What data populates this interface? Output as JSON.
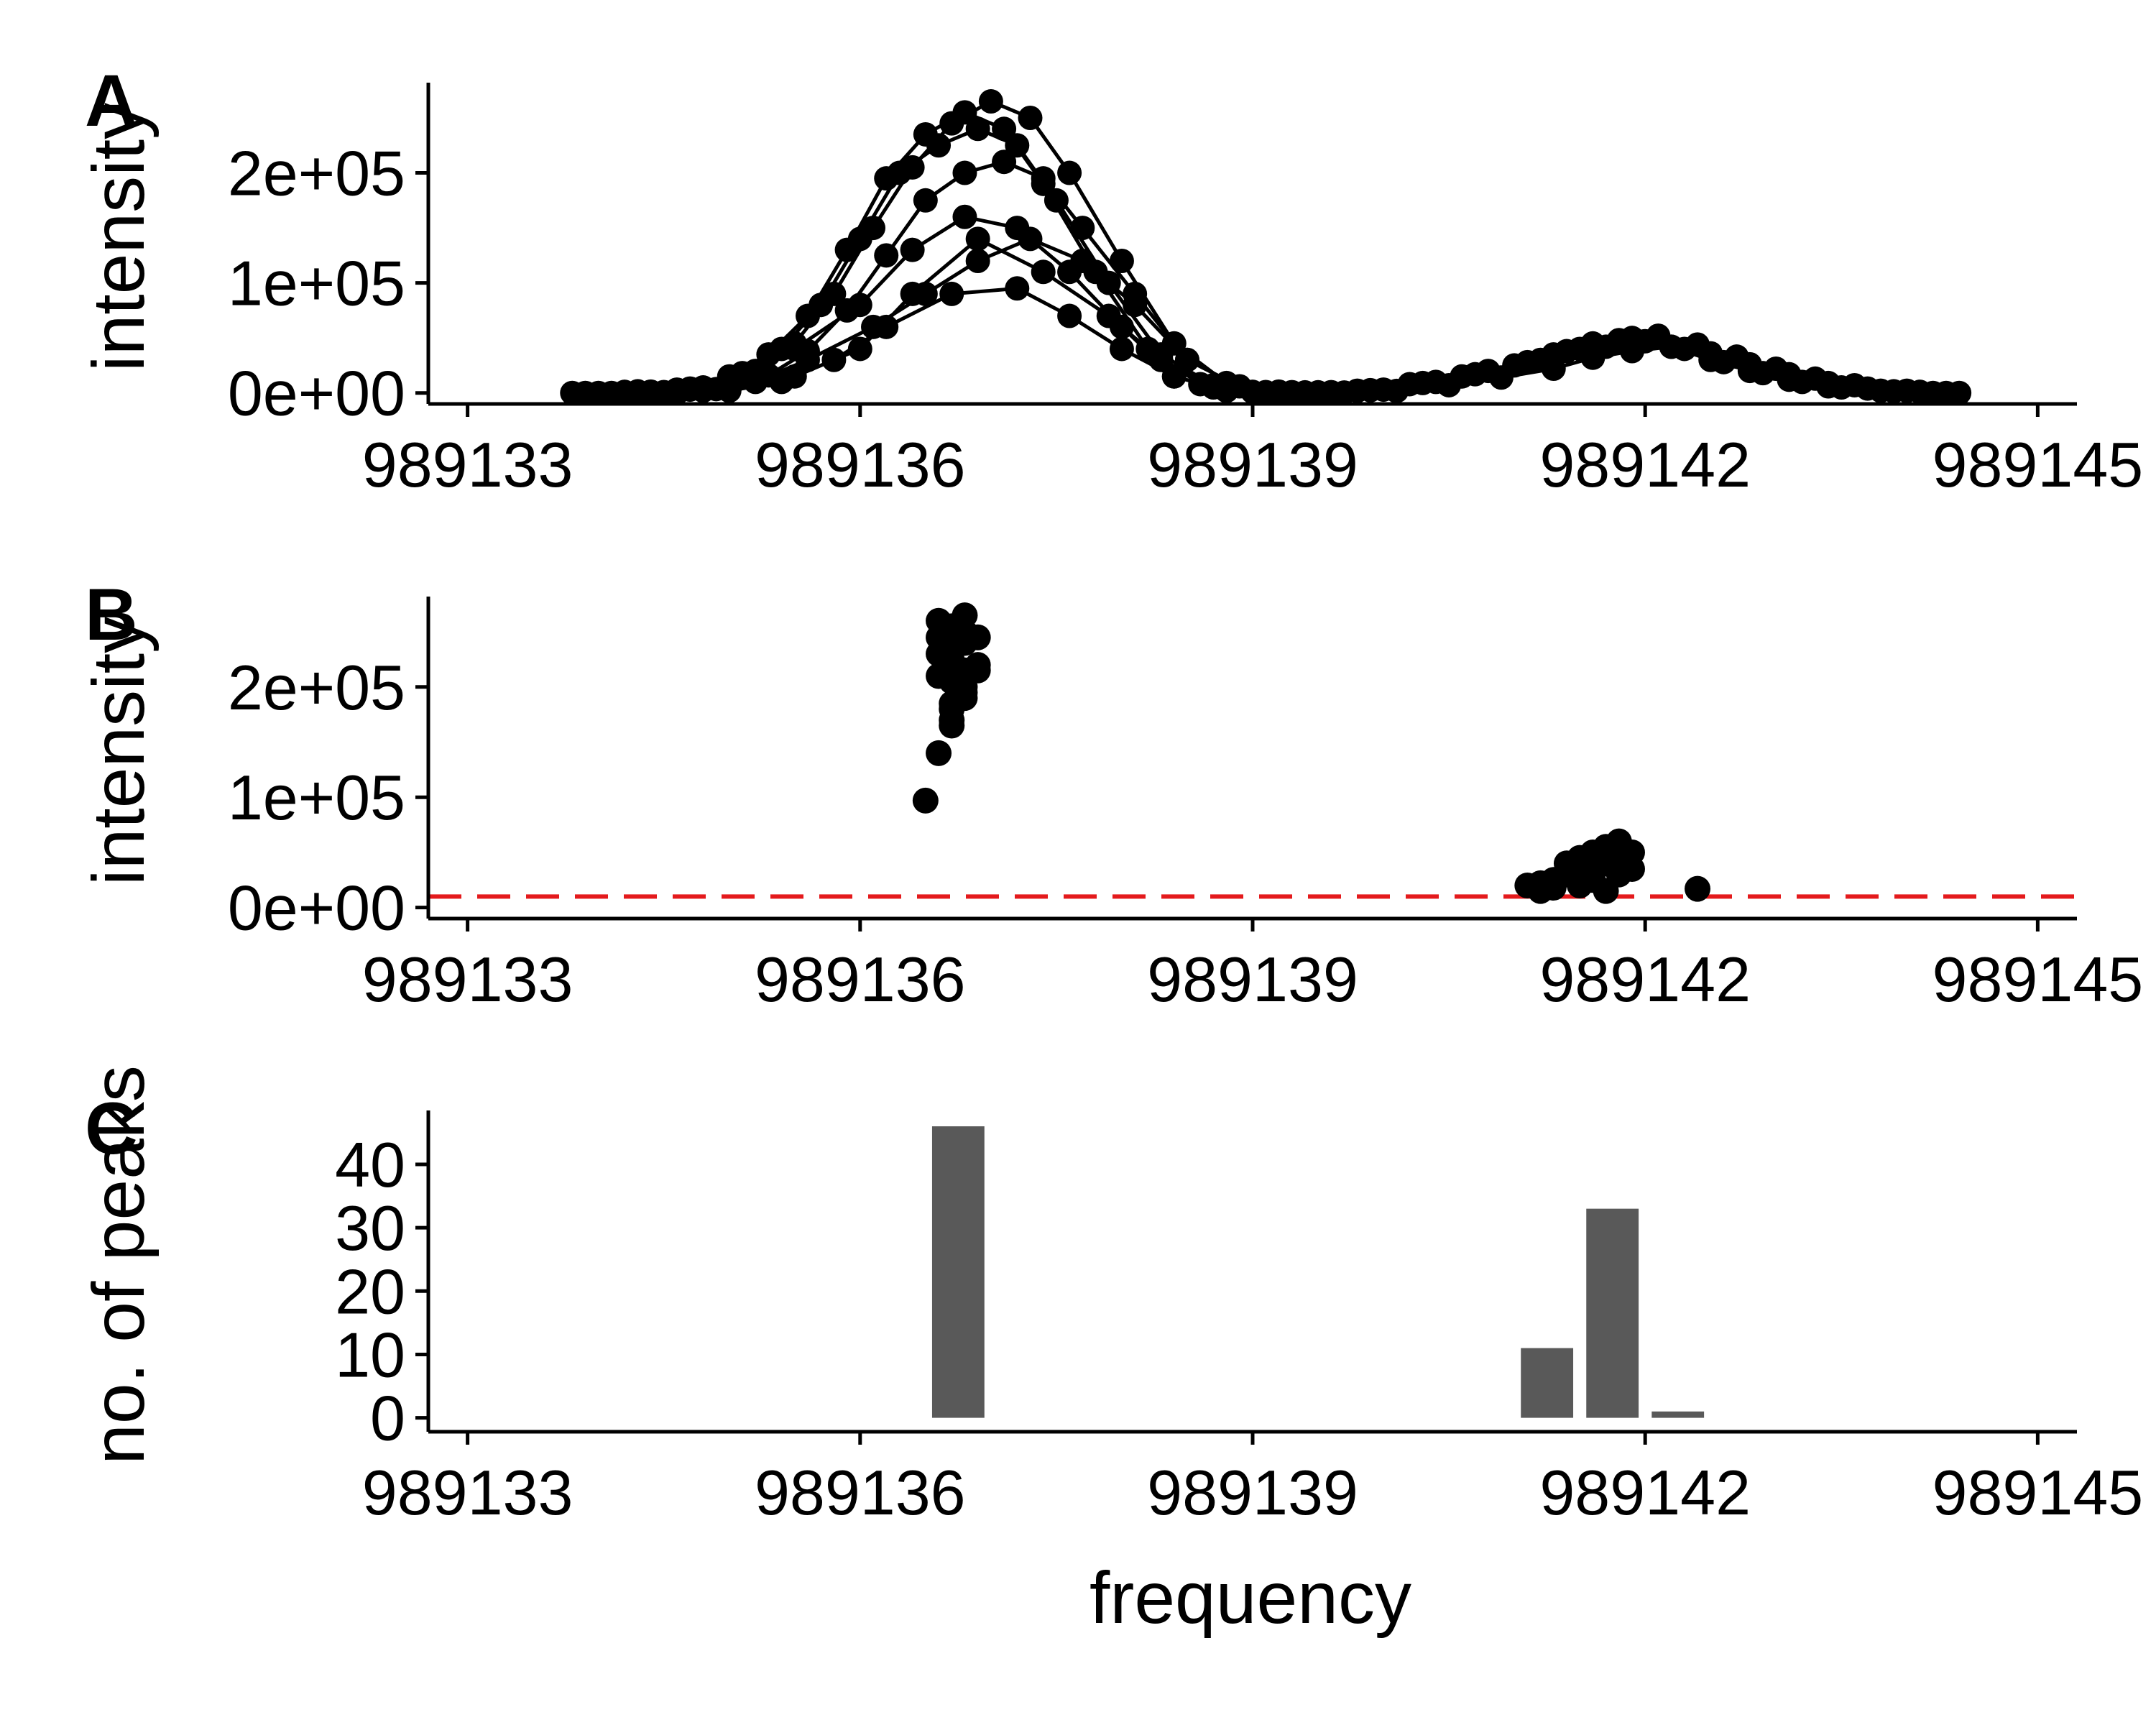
{
  "chart_data": [
    {
      "panel": "A",
      "type": "line",
      "ylabel": "intensity",
      "xlabel": "",
      "x_ticks": [
        "989133",
        "989136",
        "989139",
        "989142",
        "989145"
      ],
      "y_ticks": [
        "0e+00",
        "1e+05",
        "2e+05"
      ],
      "xlim": [
        989132.7,
        989145.3
      ],
      "ylim": [
        -10000,
        282000
      ],
      "grid": false,
      "series_color": "#000000",
      "series": [
        {
          "x": [
            989133.8,
            989134.2,
            989134.6,
            989135.0,
            989135.3,
            989135.6,
            989135.9,
            989136.2,
            989136.5,
            989136.8,
            989137.1,
            989137.4,
            989137.8,
            989138.2,
            989138.6,
            989139.0,
            989139.4,
            989139.8,
            989140.2,
            989140.6,
            989141.0,
            989141.3,
            989141.6,
            989141.9,
            989142.2,
            989142.5,
            989142.8,
            989143.1,
            989143.4,
            989143.8,
            989144.2
          ],
          "y": [
            0,
            1000,
            3000,
            15000,
            35000,
            70000,
            130000,
            195000,
            235000,
            255000,
            240000,
            190000,
            110000,
            40000,
            8000,
            1000,
            500,
            2000,
            8000,
            15000,
            25000,
            35000,
            45000,
            50000,
            42000,
            30000,
            20000,
            12000,
            6000,
            2000,
            0
          ]
        },
        {
          "x": [
            989133.9,
            989134.3,
            989134.7,
            989135.1,
            989135.4,
            989135.7,
            989136.0,
            989136.3,
            989136.6,
            989136.9,
            989137.2,
            989137.5,
            989137.9,
            989138.3,
            989138.7,
            989139.1,
            989139.5,
            989139.9,
            989140.3,
            989140.7,
            989141.1,
            989141.4,
            989141.7,
            989142.0,
            989142.3,
            989142.6,
            989142.9,
            989143.2,
            989143.5,
            989143.9,
            989144.3
          ],
          "y": [
            0,
            1500,
            4000,
            18000,
            40000,
            80000,
            140000,
            200000,
            225000,
            240000,
            225000,
            175000,
            100000,
            35000,
            7000,
            800,
            600,
            2500,
            9000,
            17000,
            28000,
            38000,
            42000,
            47000,
            40000,
            28000,
            18000,
            10000,
            5000,
            1500,
            0
          ]
        },
        {
          "x": [
            989134.0,
            989134.4,
            989134.8,
            989135.2,
            989135.5,
            989135.8,
            989136.1,
            989136.4,
            989136.7,
            989137.0,
            989137.3,
            989137.6,
            989138.0,
            989138.4,
            989138.8,
            989139.2,
            989139.6,
            989140.0,
            989140.4,
            989140.8,
            989141.2,
            989141.5,
            989141.8,
            989142.1,
            989142.4,
            989142.7,
            989143.0,
            989143.3,
            989143.6,
            989144.0,
            989144.4
          ],
          "y": [
            0,
            1200,
            5000,
            20000,
            45000,
            90000,
            150000,
            205000,
            245000,
            265000,
            250000,
            200000,
            120000,
            45000,
            9000,
            1200,
            700,
            3000,
            10000,
            20000,
            30000,
            40000,
            48000,
            52000,
            44000,
            33000,
            22000,
            13000,
            7000,
            2000,
            0
          ]
        },
        {
          "x": [
            989134.1,
            989134.5,
            989134.9,
            989135.3,
            989135.6,
            989135.9,
            989136.2,
            989136.5,
            989136.8,
            989137.1,
            989137.4,
            989137.7,
            989138.1,
            989138.5,
            989138.9,
            989139.3,
            989139.7,
            989140.1,
            989140.5,
            989140.9,
            989141.3,
            989141.6,
            989141.9,
            989142.2,
            989142.5,
            989142.8,
            989143.1,
            989143.4,
            989143.7,
            989144.1
          ],
          "y": [
            0,
            800,
            3500,
            16000,
            38000,
            75000,
            125000,
            175000,
            200000,
            210000,
            195000,
            150000,
            90000,
            30000,
            6000,
            700,
            400,
            1800,
            7000,
            14000,
            22000,
            32000,
            38000,
            42000,
            36000,
            26000,
            17000,
            9000,
            4000,
            1000
          ]
        },
        {
          "x": [
            989134.3,
            989134.7,
            989135.1,
            989135.5,
            989136.0,
            989136.4,
            989136.8,
            989137.2,
            989137.6,
            989138.0,
            989138.4,
            989138.8
          ],
          "y": [
            0,
            3000,
            15000,
            40000,
            80000,
            130000,
            160000,
            150000,
            110000,
            60000,
            15000,
            2000
          ]
        },
        {
          "x": [
            989134.4,
            989134.8,
            989135.2,
            989135.6,
            989136.1,
            989136.5,
            989136.9,
            989137.3,
            989137.7,
            989138.1,
            989138.5
          ],
          "y": [
            0,
            2000,
            10000,
            30000,
            60000,
            90000,
            120000,
            140000,
            120000,
            80000,
            30000
          ]
        },
        {
          "x": [
            989134.5,
            989135.0,
            989135.4,
            989135.8,
            989136.2,
            989136.7,
            989137.2,
            989137.6,
            989138.0,
            989138.4,
            989138.8
          ],
          "y": [
            0,
            2000,
            10000,
            30000,
            60000,
            90000,
            95000,
            70000,
            40000,
            15000,
            2000
          ]
        },
        {
          "x": [
            989134.6,
            989135.0,
            989135.5,
            989136.0,
            989136.4,
            989136.9,
            989137.4,
            989137.9,
            989138.3,
            989138.7
          ],
          "y": [
            0,
            3000,
            15000,
            40000,
            90000,
            140000,
            110000,
            70000,
            30000,
            5000
          ]
        }
      ]
    },
    {
      "panel": "B",
      "type": "scatter",
      "ylabel": "intensity",
      "xlabel": "",
      "x_ticks": [
        "989133",
        "989136",
        "989139",
        "989142",
        "989145"
      ],
      "y_ticks": [
        "0e+00",
        "1e+05",
        "2e+05"
      ],
      "xlim": [
        989132.7,
        989145.3
      ],
      "ylim": [
        -10000,
        282000
      ],
      "grid": false,
      "threshold": {
        "y": 10000,
        "color": "#e41a1c",
        "style": "dashed"
      },
      "points": {
        "x": [
          989136.5,
          989136.6,
          989136.7,
          989136.7,
          989136.8,
          989136.8,
          989136.7,
          989136.6,
          989136.8,
          989136.9,
          989136.7,
          989136.6,
          989136.7,
          989136.8,
          989136.9,
          989136.8,
          989136.7,
          989136.6,
          989136.8,
          989136.7,
          989136.9,
          989136.7,
          989136.8,
          989136.6,
          989141.1,
          989141.2,
          989141.3,
          989141.4,
          989141.4,
          989141.5,
          989141.5,
          989141.6,
          989141.6,
          989141.7,
          989141.7,
          989141.8,
          989141.8,
          989141.9,
          989141.9,
          989141.7,
          989141.6,
          989141.8,
          989141.5,
          989141.3,
          989141.2,
          989142.4
        ],
        "y": [
          97000,
          140000,
          165000,
          180000,
          190000,
          200000,
          205000,
          210000,
          215000,
          220000,
          225000,
          230000,
          235000,
          240000,
          245000,
          250000,
          255000,
          260000,
          265000,
          170000,
          215000,
          185000,
          195000,
          245000,
          20000,
          15000,
          25000,
          30000,
          40000,
          35000,
          45000,
          30000,
          50000,
          40000,
          55000,
          45000,
          60000,
          50000,
          35000,
          15000,
          25000,
          30000,
          20000,
          18000,
          22000,
          17000
        ]
      }
    },
    {
      "panel": "C",
      "type": "bar",
      "ylabel": "no. of peaks",
      "xlabel": "frequency",
      "x_ticks": [
        "989133",
        "989136",
        "989139",
        "989142",
        "989145"
      ],
      "y_ticks": [
        "0",
        "10",
        "20",
        "30",
        "40"
      ],
      "xlim": [
        989132.7,
        989145.3
      ],
      "ylim": [
        -2.2,
        48.5
      ],
      "grid": false,
      "bar_color": "#595959",
      "bin_width": 0.5,
      "bars": [
        {
          "x": 989136.75,
          "value": 46
        },
        {
          "x": 989141.25,
          "value": 11
        },
        {
          "x": 989141.75,
          "value": 33
        },
        {
          "x": 989142.25,
          "value": 1
        }
      ]
    }
  ]
}
